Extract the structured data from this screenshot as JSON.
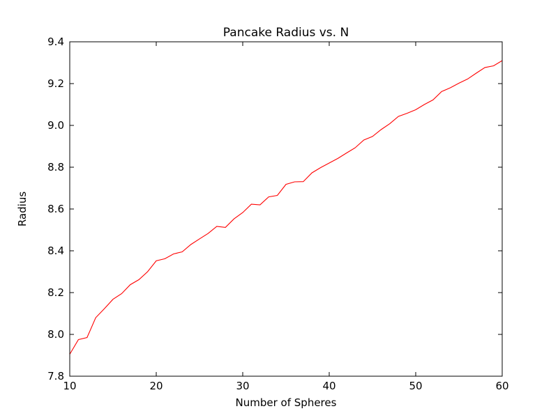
{
  "chart_data": {
    "type": "line",
    "title": "Pancake Radius vs. N",
    "xlabel": "Number of Spheres",
    "ylabel": "Radius",
    "xlim": [
      10,
      60
    ],
    "ylim": [
      7.8,
      9.4
    ],
    "xticks": [
      "10",
      "20",
      "30",
      "40",
      "50",
      "60"
    ],
    "yticks": [
      "7.8",
      "8.0",
      "8.2",
      "8.4",
      "8.6",
      "8.8",
      "9.0",
      "9.2",
      "9.4"
    ],
    "grid": false,
    "legend": "none",
    "colors": {
      "line": "#ff0000",
      "axes": "#000000",
      "background": "#ffffff"
    },
    "series": [
      {
        "x": [
          10,
          11,
          12,
          13,
          14,
          15,
          16,
          17,
          18,
          19,
          20,
          21,
          22,
          23,
          24,
          25,
          26,
          27,
          28,
          29,
          30,
          31,
          32,
          33,
          34,
          35,
          36,
          37,
          38,
          39,
          40,
          41,
          42,
          43,
          44,
          45,
          46,
          47,
          48,
          49,
          50,
          51,
          52,
          53,
          54,
          55,
          56,
          57,
          58,
          59,
          60
        ],
        "values": [
          7.905,
          7.975,
          7.985,
          8.08,
          8.123,
          8.168,
          8.195,
          8.238,
          8.262,
          8.3,
          8.352,
          8.362,
          8.385,
          8.395,
          8.43,
          8.457,
          8.483,
          8.517,
          8.512,
          8.553,
          8.583,
          8.623,
          8.62,
          8.658,
          8.665,
          8.718,
          8.73,
          8.731,
          8.773,
          8.798,
          8.82,
          8.842,
          8.868,
          8.893,
          8.93,
          8.947,
          8.98,
          9.008,
          9.043,
          9.058,
          9.075,
          9.1,
          9.122,
          9.162,
          9.18,
          9.202,
          9.222,
          9.25,
          9.277,
          9.285,
          9.31
        ]
      }
    ]
  }
}
